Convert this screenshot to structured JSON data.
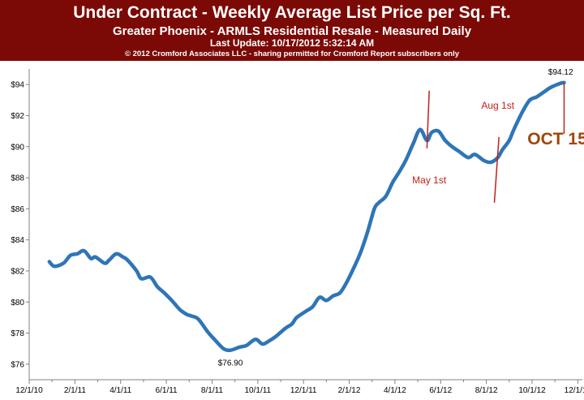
{
  "header": {
    "title": "Under Contract - Weekly Average List Price per Sq. Ft.",
    "subtitle": "Greater Phoenix - ARMLS Residential Resale - Measured Daily",
    "update": "Last Update: 10/17/2012 5:32:14 AM",
    "copyright": "© 2012 Cromford Associates LLC - sharing permitted for Cromford Report subscribers only"
  },
  "colors": {
    "header_bg": "#7b0a06",
    "line": "#2e75b6",
    "annotation": "#c0201a",
    "oct": "#a0450a"
  },
  "chart_data": {
    "type": "line",
    "title": "Under Contract - Weekly Average List Price per Sq. Ft.",
    "xlabel": "",
    "ylabel": "",
    "ylim": [
      75,
      95
    ],
    "y_ticks": [
      "$76",
      "$78",
      "$80",
      "$82",
      "$84",
      "$86",
      "$88",
      "$90",
      "$92",
      "$94"
    ],
    "y_tick_values": [
      76,
      78,
      80,
      82,
      84,
      86,
      88,
      90,
      92,
      94
    ],
    "x_ticks": [
      "12/1/10",
      "2/1/11",
      "4/1/11",
      "6/1/11",
      "8/1/11",
      "10/1/11",
      "12/1/11",
      "2/1/12",
      "4/1/12",
      "6/1/12",
      "8/1/12",
      "10/1/12",
      "12/1/12"
    ],
    "x_tick_months": [
      0,
      2,
      4,
      6,
      8,
      10,
      12,
      14,
      16,
      18,
      20,
      22,
      24
    ],
    "xlim_months": [
      0,
      24.2
    ],
    "series": [
      {
        "name": "Weekly Average List Price per Sq. Ft.",
        "x_months": [
          0.88,
          1.1,
          1.5,
          1.8,
          2.1,
          2.4,
          2.7,
          2.9,
          3.3,
          3.5,
          3.8,
          4.1,
          4.3,
          4.7,
          4.9,
          5.3,
          5.6,
          5.9,
          6.3,
          6.6,
          6.9,
          7.1,
          7.4,
          7.8,
          8.1,
          8.5,
          8.8,
          9.2,
          9.5,
          9.9,
          10.2,
          10.5,
          10.8,
          11.2,
          11.5,
          11.7,
          12.1,
          12.4,
          12.7,
          13.0,
          13.3,
          13.6,
          13.9,
          14.2,
          14.5,
          14.8,
          15.1,
          15.3,
          15.6,
          15.9,
          16.2,
          16.5,
          16.8,
          17.1,
          17.4,
          17.6,
          17.9,
          18.2,
          18.5,
          18.8,
          19.2,
          19.5,
          19.9,
          20.2,
          20.5,
          20.7,
          21.0,
          21.2,
          21.6,
          21.9,
          22.2,
          22.5,
          22.8,
          23.1,
          23.3,
          23.4
        ],
        "values": [
          82.6,
          82.3,
          82.5,
          83.0,
          83.1,
          83.3,
          82.8,
          82.9,
          82.5,
          82.7,
          83.1,
          82.9,
          82.7,
          82.0,
          81.5,
          81.6,
          81.0,
          80.6,
          80.0,
          79.5,
          79.2,
          79.1,
          78.9,
          78.1,
          77.6,
          77.0,
          76.9,
          77.1,
          77.2,
          77.6,
          77.3,
          77.5,
          77.8,
          78.3,
          78.6,
          79.0,
          79.4,
          79.7,
          80.3,
          80.1,
          80.4,
          80.6,
          81.3,
          82.2,
          83.2,
          84.5,
          86.0,
          86.4,
          86.8,
          87.7,
          88.4,
          89.2,
          90.2,
          91.1,
          90.4,
          90.9,
          91.0,
          90.4,
          90.0,
          89.7,
          89.3,
          89.5,
          89.1,
          89.0,
          89.3,
          89.8,
          90.4,
          91.1,
          92.3,
          93.0,
          93.2,
          93.5,
          93.8,
          94.0,
          94.1,
          94.12
        ]
      }
    ],
    "annotations": {
      "min_label": "$76.90",
      "max_label": "$94.12",
      "may_label": "May 1st",
      "aug_label": "Aug 1st",
      "oct_label": "OCT 15"
    }
  }
}
